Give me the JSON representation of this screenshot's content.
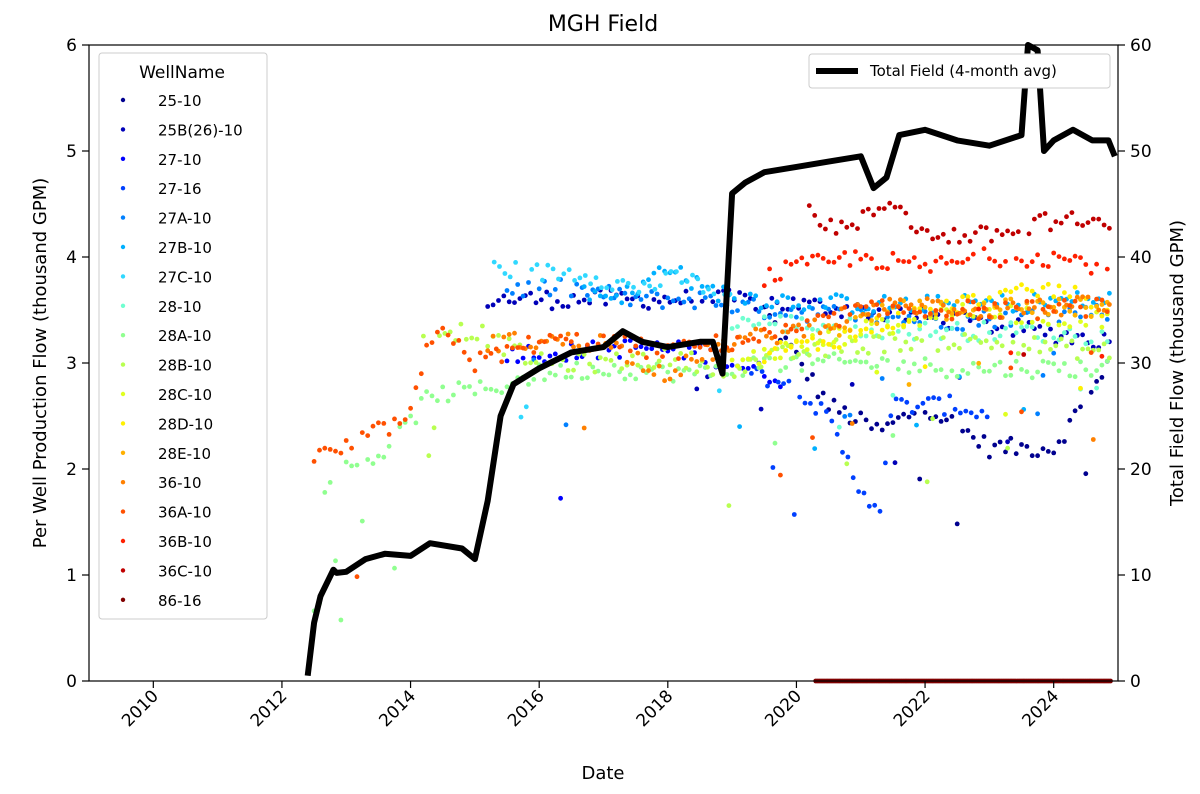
{
  "chart_data": {
    "type": "scatter",
    "title": "MGH Field",
    "xlabel": "Date",
    "ylabel_left": "Per Well Production Flow (thousand GPM)",
    "ylabel_right": "Total Field Flow (thousand GPM)",
    "xlim": [
      2009.0,
      2025.0
    ],
    "ylim_left": [
      0,
      6
    ],
    "ylim_right": [
      0,
      60
    ],
    "x_ticks": [
      "2010",
      "2012",
      "2014",
      "2016",
      "2018",
      "2020",
      "2022",
      "2024"
    ],
    "y_left_ticks": [
      "0",
      "1",
      "2",
      "3",
      "4",
      "5",
      "6"
    ],
    "y_right_ticks": [
      "0",
      "10",
      "20",
      "30",
      "40",
      "50",
      "60"
    ],
    "legend_title": "WellName",
    "legend_location": "upper-left",
    "series": [
      {
        "name": "25-10",
        "color": "#00008f",
        "profile": [
          [
            2019.5,
            3.5
          ],
          [
            2020.5,
            2.6
          ],
          [
            2021.3,
            2.35
          ],
          [
            2022.0,
            2.6
          ],
          [
            2023.0,
            2.2
          ],
          [
            2024.0,
            2.2
          ],
          [
            2024.9,
            3.0
          ]
        ]
      },
      {
        "name": "25B(26)-10",
        "color": "#0000b8",
        "profile": [
          [
            2015.2,
            3.6
          ],
          [
            2017.0,
            3.6
          ],
          [
            2019.0,
            3.6
          ],
          [
            2020.0,
            3.55
          ],
          [
            2021.0,
            3.5
          ],
          [
            2022.5,
            3.4
          ],
          [
            2024.9,
            3.2
          ]
        ]
      },
      {
        "name": "27-10",
        "color": "#0000ff",
        "profile": [
          [
            2015.5,
            3.1
          ],
          [
            2016.5,
            3.1
          ],
          [
            2017.5,
            3.15
          ],
          [
            2018.5,
            3.1
          ],
          [
            2019.0,
            3.0
          ],
          [
            2019.8,
            2.85
          ]
        ]
      },
      {
        "name": "27-16",
        "color": "#0040ff",
        "profile": [
          [
            2019.3,
            2.9
          ],
          [
            2020.0,
            2.8
          ],
          [
            2020.5,
            2.45
          ],
          [
            2021.0,
            1.8
          ],
          [
            2021.3,
            1.65
          ],
          [
            2021.5,
            2.6
          ],
          [
            2022.5,
            2.6
          ],
          [
            2023.0,
            2.5
          ]
        ]
      },
      {
        "name": "27A-10",
        "color": "#0080ff",
        "profile": [
          [
            2015.5,
            3.7
          ],
          [
            2016.5,
            3.7
          ],
          [
            2017.5,
            3.6
          ],
          [
            2018.5,
            3.6
          ],
          [
            2019.5,
            3.5
          ],
          [
            2021.0,
            3.45
          ],
          [
            2022.5,
            3.4
          ],
          [
            2024.9,
            3.5
          ]
        ]
      },
      {
        "name": "27B-10",
        "color": "#00b0ff",
        "profile": [
          [
            2016.7,
            3.65
          ],
          [
            2017.5,
            3.65
          ],
          [
            2018.0,
            3.95
          ],
          [
            2018.5,
            3.7
          ],
          [
            2019.5,
            3.6
          ],
          [
            2021.0,
            3.55
          ],
          [
            2022.5,
            3.55
          ],
          [
            2024.9,
            3.6
          ]
        ]
      },
      {
        "name": "27C-10",
        "color": "#30d8ff",
        "profile": [
          [
            2015.3,
            3.9
          ],
          [
            2016.0,
            3.85
          ],
          [
            2016.7,
            3.85
          ],
          [
            2017.5,
            3.7
          ],
          [
            2018.2,
            3.8
          ],
          [
            2018.9,
            3.65
          ],
          [
            2019.0,
            3.55
          ]
        ]
      },
      {
        "name": "28-10",
        "color": "#70ffd0",
        "profile": [
          [
            2019.0,
            3.4
          ],
          [
            2020.5,
            3.35
          ],
          [
            2022.0,
            3.3
          ],
          [
            2023.5,
            3.3
          ],
          [
            2024.9,
            3.25
          ]
        ]
      },
      {
        "name": "28A-10",
        "color": "#90ff90",
        "profile": [
          [
            2012.5,
            1.8
          ],
          [
            2013.0,
            2.0
          ],
          [
            2013.7,
            2.2
          ],
          [
            2014.3,
            2.7
          ],
          [
            2015.2,
            2.75
          ],
          [
            2016.0,
            2.9
          ],
          [
            2017.0,
            2.95
          ],
          [
            2018.5,
            2.9
          ],
          [
            2019.5,
            3.0
          ],
          [
            2021.0,
            3.0
          ],
          [
            2022.5,
            2.95
          ],
          [
            2024.9,
            2.95
          ]
        ]
      },
      {
        "name": "28B-10",
        "color": "#b8ff50",
        "profile": [
          [
            2014.2,
            3.3
          ],
          [
            2015.0,
            3.3
          ],
          [
            2016.0,
            3.0
          ],
          [
            2017.0,
            3.0
          ],
          [
            2018.0,
            3.05
          ],
          [
            2019.0,
            2.95
          ],
          [
            2020.0,
            3.1
          ],
          [
            2021.5,
            3.2
          ],
          [
            2023.0,
            3.2
          ],
          [
            2024.9,
            3.1
          ]
        ]
      },
      {
        "name": "28C-10",
        "color": "#e0ff20",
        "profile": [
          [
            2019.0,
            3.0
          ],
          [
            2020.0,
            3.15
          ],
          [
            2021.0,
            3.3
          ],
          [
            2022.5,
            3.5
          ],
          [
            2024.9,
            3.4
          ]
        ]
      },
      {
        "name": "28D-10",
        "color": "#fff000",
        "profile": [
          [
            2019.5,
            3.1
          ],
          [
            2020.5,
            3.2
          ],
          [
            2021.5,
            3.4
          ],
          [
            2022.5,
            3.55
          ],
          [
            2024.0,
            3.7
          ],
          [
            2024.9,
            3.5
          ]
        ]
      },
      {
        "name": "28E-10",
        "color": "#ffb000",
        "profile": [
          [
            2020.5,
            3.3
          ],
          [
            2021.5,
            3.5
          ],
          [
            2022.5,
            3.5
          ],
          [
            2023.5,
            3.55
          ],
          [
            2024.9,
            3.5
          ]
        ]
      },
      {
        "name": "36-10",
        "color": "#ff8000",
        "profile": [
          [
            2015.2,
            3.2
          ],
          [
            2016.0,
            3.2
          ],
          [
            2017.0,
            3.2
          ],
          [
            2018.0,
            2.9
          ],
          [
            2019.0,
            3.2
          ],
          [
            2020.0,
            3.3
          ],
          [
            2021.0,
            3.5
          ],
          [
            2022.0,
            3.55
          ],
          [
            2023.0,
            3.5
          ],
          [
            2024.9,
            3.55
          ]
        ]
      },
      {
        "name": "36A-10",
        "color": "#ff5000",
        "profile": [
          [
            2012.5,
            2.1
          ],
          [
            2013.0,
            2.2
          ],
          [
            2013.5,
            2.35
          ],
          [
            2014.0,
            2.5
          ],
          [
            2014.3,
            3.2
          ],
          [
            2014.6,
            3.3
          ],
          [
            2015.0,
            3.0
          ],
          [
            2016.0,
            3.2
          ],
          [
            2017.0,
            3.2
          ],
          [
            2018.0,
            3.1
          ],
          [
            2019.0,
            3.2
          ],
          [
            2020.0,
            3.3
          ],
          [
            2021.0,
            3.5
          ],
          [
            2022.5,
            3.5
          ],
          [
            2024.0,
            3.5
          ],
          [
            2024.9,
            3.55
          ]
        ]
      },
      {
        "name": "36B-10",
        "color": "#ff2000",
        "profile": [
          [
            2019.5,
            3.8
          ],
          [
            2020.0,
            3.9
          ],
          [
            2021.0,
            4.0
          ],
          [
            2022.0,
            3.9
          ],
          [
            2023.0,
            4.0
          ],
          [
            2024.0,
            4.0
          ],
          [
            2024.9,
            3.9
          ]
        ]
      },
      {
        "name": "36C-10",
        "color": "#c00000",
        "profile": [
          [
            2020.2,
            4.4
          ],
          [
            2020.8,
            4.25
          ],
          [
            2021.5,
            4.55
          ],
          [
            2022.0,
            4.2
          ],
          [
            2023.0,
            4.2
          ],
          [
            2024.0,
            4.35
          ],
          [
            2024.9,
            4.3
          ]
        ]
      },
      {
        "name": "86-16",
        "color": "#800000",
        "profile": [
          [
            2020.3,
            0.0
          ],
          [
            2024.9,
            0.0
          ]
        ]
      }
    ],
    "total_series": {
      "name": "Total Field (4-month avg)",
      "color": "#000000",
      "axis": "right",
      "x": [
        2012.4,
        2012.5,
        2012.6,
        2012.8,
        2012.85,
        2013.0,
        2013.3,
        2013.6,
        2014.0,
        2014.3,
        2014.8,
        2015.0,
        2015.2,
        2015.4,
        2015.6,
        2016.0,
        2016.5,
        2017.0,
        2017.3,
        2017.6,
        2018.0,
        2018.5,
        2018.7,
        2018.85,
        2019.0,
        2019.2,
        2019.5,
        2020.0,
        2020.5,
        2021.0,
        2021.2,
        2021.4,
        2021.6,
        2022.0,
        2022.5,
        2023.0,
        2023.5,
        2023.6,
        2023.75,
        2023.85,
        2024.0,
        2024.3,
        2024.6,
        2024.85,
        2024.95
      ],
      "y": [
        0.5,
        5.5,
        8,
        10.5,
        10.2,
        10.3,
        11.5,
        12,
        11.8,
        13,
        12.5,
        11.5,
        17,
        25,
        28,
        29.5,
        31,
        31.5,
        33,
        32,
        31.5,
        32,
        32,
        29,
        46,
        47,
        48,
        48.5,
        49,
        49.5,
        46.5,
        47.5,
        51.5,
        52,
        51,
        50.5,
        51.5,
        60,
        59.5,
        50,
        51,
        52,
        51,
        51,
        49.5
      ]
    }
  }
}
